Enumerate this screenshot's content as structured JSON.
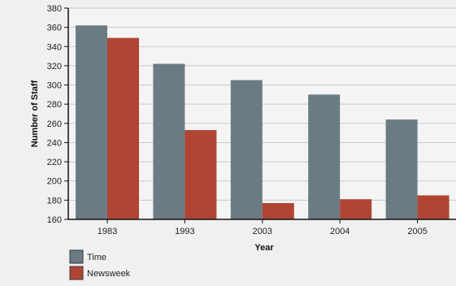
{
  "chart_data": {
    "type": "bar",
    "categories": [
      "1983",
      "1993",
      "2003",
      "2004",
      "2005"
    ],
    "series": [
      {
        "name": "Time",
        "color": "#6b7b84",
        "values": [
          362,
          322,
          305,
          290,
          264
        ]
      },
      {
        "name": "Newsweek",
        "color": "#b04534",
        "values": [
          349,
          253,
          177,
          181,
          185
        ]
      }
    ],
    "xlabel": "Year",
    "ylabel": "Number of Staff",
    "ylim": [
      160,
      380
    ],
    "yticks": [
      160,
      180,
      200,
      220,
      240,
      260,
      280,
      300,
      320,
      340,
      360,
      380
    ],
    "grid": true,
    "legend_position": "bottom-left"
  }
}
